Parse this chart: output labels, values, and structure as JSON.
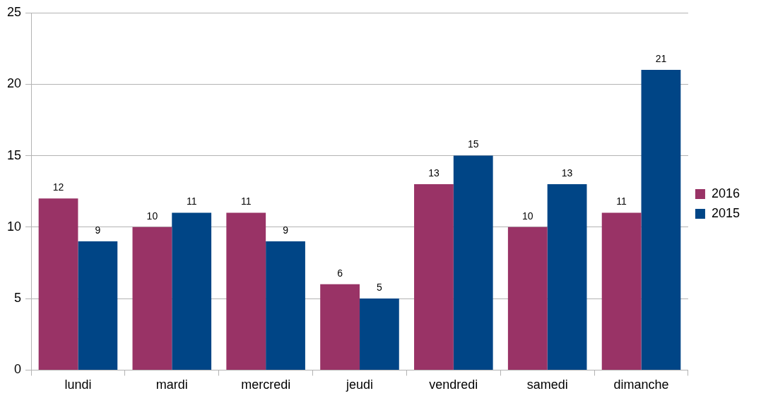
{
  "chart_data": {
    "type": "bar",
    "categories": [
      "lundi",
      "mardi",
      "mercredi",
      "jeudi",
      "vendredi",
      "samedi",
      "dimanche"
    ],
    "series": [
      {
        "name": "2016",
        "color": "#993366",
        "values": [
          12,
          10,
          11,
          6,
          13,
          10,
          11
        ]
      },
      {
        "name": "2015",
        "color": "#004586",
        "values": [
          9,
          11,
          9,
          5,
          15,
          13,
          21
        ]
      }
    ],
    "ylim": [
      0,
      25
    ],
    "yticks": [
      0,
      5,
      10,
      15,
      20,
      25
    ],
    "grid": "y",
    "legend": "right",
    "data_labels": true
  }
}
